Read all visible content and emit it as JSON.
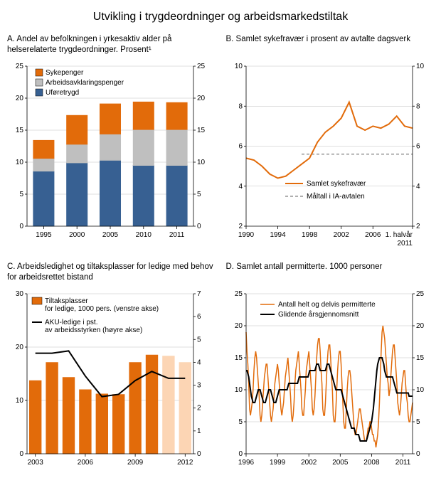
{
  "main_title": "Utvikling i trygdeordninger og arbeidsmarkedstiltak",
  "colors": {
    "orange_fill": "#e26b0a",
    "orange_line": "#e26b0a",
    "gray_fill": "#bfbfbf",
    "blue_fill": "#376092",
    "black_line": "#000000",
    "light_orange": "#fcd5b4",
    "gray_dash": "#7f7f7f",
    "grid": "#bfbfbf"
  },
  "panelA": {
    "title": "A.  Andel av befolkningen i yrkesaktiv alder på helserelaterte trygdeordninger. Prosent¹",
    "legend": [
      "Sykepenger",
      "Arbeidsavklaringspenger",
      "Uføretrygd"
    ],
    "categories": [
      "1995",
      "2000",
      "2005",
      "2010",
      "2011"
    ],
    "series": {
      "uforetrygd": [
        8.6,
        9.9,
        10.3,
        9.5,
        9.5
      ],
      "arbeidsavklaring": [
        2.0,
        2.9,
        4.1,
        5.6,
        5.6
      ],
      "sykepenger": [
        2.8,
        4.5,
        4.7,
        4.3,
        4.2
      ]
    },
    "y": {
      "min": 0,
      "max": 25,
      "step": 5
    }
  },
  "panelB": {
    "title": "B.   Samlet sykefravær i prosent av avtalte dagsverk",
    "legend": [
      "Samlet sykefravær",
      "Måltall i IA-avtalen"
    ],
    "x_categories": [
      "1990",
      "1994",
      "1998",
      "2002",
      "2006",
      "1. halvår 2011"
    ],
    "line_years": [
      1990,
      1991,
      1992,
      1993,
      1994,
      1995,
      1996,
      1997,
      1998,
      1999,
      2000,
      2001,
      2002,
      2003,
      2004,
      2005,
      2006,
      2007,
      2008,
      2009,
      2010,
      2011
    ],
    "line_values": [
      5.4,
      5.3,
      5.0,
      4.6,
      4.4,
      4.5,
      4.8,
      5.1,
      5.4,
      6.2,
      6.7,
      7.0,
      7.4,
      8.2,
      7.0,
      6.8,
      7.0,
      6.9,
      7.1,
      7.5,
      7.0,
      6.9
    ],
    "h_line": {
      "start_year": 1997,
      "value": 5.6
    },
    "y": {
      "min": 2,
      "max": 10,
      "step": 2
    }
  },
  "panelC": {
    "title": "C.  Arbeidsledighet og tiltaksplasser for ledige med behov for arbeidsrettet bistand",
    "legend": [
      "Tiltaksplasser for ledige, 1000 pers. (venstre akse)",
      "AKU-ledige i pst. av arbeidsstyrken (høyre akse)"
    ],
    "categories": [
      "2003",
      "2004",
      "2005",
      "2006",
      "2007",
      "2008",
      "2009",
      "2010",
      "2011",
      "2012"
    ],
    "bars": [
      13.7,
      17.1,
      14.3,
      12.0,
      11.2,
      11.1,
      17.1,
      18.5,
      18.3,
      17.1
    ],
    "light_bars_idx": [
      8,
      9
    ],
    "line_vals": [
      4.4,
      4.4,
      4.5,
      3.4,
      2.5,
      2.6,
      3.2,
      3.6,
      3.3,
      3.3
    ],
    "y_left": {
      "min": 0,
      "max": 30,
      "step": 10
    },
    "y_right": {
      "min": 0,
      "max": 7,
      "step": 1
    }
  },
  "panelD": {
    "title": "D.  Samlet antall permitterte. 1000 personer",
    "legend": [
      "Antall helt og delvis permitterte",
      "Glidende årsgjennomsnitt"
    ],
    "x_categories": [
      "1996",
      "1999",
      "2002",
      "2005",
      "2008",
      "2011"
    ],
    "y": {
      "min": 0,
      "max": 25,
      "step": 5
    },
    "months": 192,
    "orange_series": [
      19,
      16,
      14,
      11,
      7,
      6,
      7,
      8,
      10,
      13,
      15,
      16,
      15,
      13,
      11,
      9,
      6,
      5,
      6,
      8,
      10,
      12,
      13,
      14,
      14,
      12,
      10,
      8,
      6,
      5,
      6,
      7,
      9,
      11,
      12,
      13,
      14,
      13,
      11,
      9,
      7,
      6,
      7,
      8,
      10,
      12,
      13,
      14,
      15,
      13,
      11,
      9,
      6,
      5,
      6,
      8,
      11,
      13,
      14,
      15,
      16,
      14,
      12,
      10,
      7,
      6,
      6,
      8,
      10,
      13,
      14,
      15,
      16,
      14,
      12,
      10,
      7,
      6,
      7,
      9,
      12,
      15,
      17,
      18,
      18,
      16,
      13,
      11,
      7,
      6,
      6,
      8,
      11,
      14,
      16,
      17,
      17,
      15,
      12,
      10,
      6,
      5,
      5,
      7,
      10,
      13,
      15,
      16,
      16,
      14,
      11,
      8,
      5,
      4,
      4,
      7,
      10,
      12,
      13,
      13,
      12,
      10,
      8,
      6,
      4,
      3,
      3,
      4,
      5,
      6,
      7,
      7,
      6,
      5,
      4,
      3,
      2,
      2,
      2,
      3,
      4,
      4,
      5,
      5,
      4,
      3,
      3,
      2,
      2,
      1,
      2,
      3,
      5,
      8,
      12,
      16,
      19,
      20,
      19,
      18,
      16,
      14,
      12,
      11,
      9,
      10,
      12,
      14,
      16,
      17,
      17,
      15,
      13,
      11,
      8,
      7,
      6,
      7,
      9,
      11,
      12,
      13,
      13,
      11,
      9,
      8,
      6,
      5,
      5,
      6,
      7,
      8
    ],
    "black_series": [
      13,
      13,
      12.5,
      12,
      11,
      10,
      9,
      8.5,
      8,
      8,
      8,
      8.5,
      9,
      9.5,
      10,
      10,
      10,
      9.5,
      9,
      8.5,
      8,
      8,
      8,
      8.5,
      9,
      9.5,
      10,
      10,
      10,
      9.5,
      9,
      8.5,
      8,
      8,
      8,
      8.5,
      9,
      9.5,
      10,
      10,
      10,
      10,
      10,
      10,
      10,
      10,
      10,
      10,
      10.5,
      11,
      11,
      11,
      11,
      11,
      11,
      11,
      11,
      11,
      11,
      11,
      11.5,
      12,
      12,
      12,
      12,
      12,
      12,
      12,
      12,
      12,
      12,
      12,
      12.5,
      13,
      13,
      13,
      13,
      13,
      13,
      13,
      13.5,
      14,
      14,
      14,
      13.5,
      13,
      13,
      13,
      13,
      13,
      13,
      13,
      13.5,
      14,
      14,
      14,
      13.5,
      13,
      12.5,
      12,
      11.5,
      11,
      10.5,
      10,
      10,
      10,
      10,
      10,
      10,
      10,
      9.5,
      9,
      8.5,
      8,
      7.5,
      7,
      6.5,
      6,
      5.5,
      5,
      4.5,
      4,
      4,
      4,
      4,
      3.5,
      3,
      3,
      3,
      3,
      2.5,
      2,
      2,
      2,
      2,
      2,
      2,
      2,
      2,
      2.5,
      3,
      3.5,
      4,
      4.5,
      5,
      6,
      7,
      8.5,
      10,
      11.5,
      13,
      14,
      14.5,
      15,
      15,
      15,
      15,
      14.5,
      14,
      13,
      12.5,
      12,
      12,
      12,
      12,
      12,
      12,
      12,
      12,
      11.5,
      11,
      10.5,
      10,
      9.5,
      9.5,
      9.5,
      9.5,
      9.5,
      9.5,
      9.5,
      9.5,
      9.5,
      9.5,
      9.5,
      9.5,
      9.5,
      9.5,
      9,
      9,
      9,
      9,
      9
    ]
  }
}
